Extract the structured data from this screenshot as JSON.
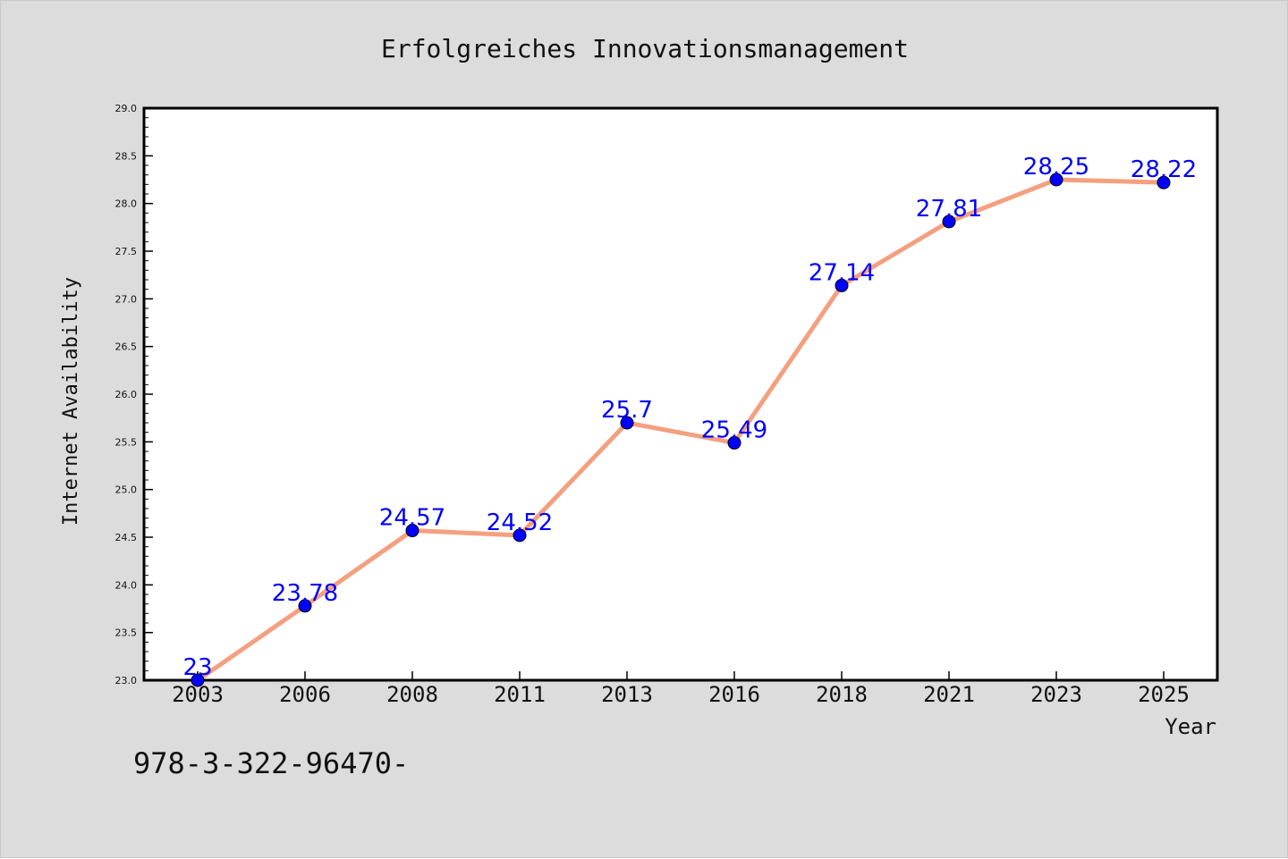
{
  "title": "Erfolgreiches Innovationsmanagement",
  "footer_text": "978-3-322-96470-",
  "colors": {
    "background": "#dcdcdc",
    "plot_background": "#ffffff",
    "line": "#f4a07f",
    "marker": "#0000ff",
    "label": "#0000ff",
    "axis": "#000000"
  },
  "chart_data": {
    "type": "line",
    "title": "Erfolgreiches Innovationsmanagement",
    "xlabel": "Year",
    "ylabel": "Internet Availability",
    "categories": [
      "2003",
      "2006",
      "2008",
      "2011",
      "2013",
      "2016",
      "2018",
      "2021",
      "2023",
      "2025"
    ],
    "series": [
      {
        "values": [
          23,
          23.78,
          24.57,
          24.52,
          25.7,
          25.49,
          27.14,
          27.81,
          28.25,
          28.22
        ],
        "data_labels": [
          "23",
          "23.78",
          "24.57",
          "24.52",
          "25.7",
          "25.49",
          "27.14",
          "27.81",
          "28.25",
          "28.22"
        ]
      }
    ],
    "ylim": [
      23.0,
      29.0
    ],
    "yticks": [
      "23.0",
      "23.5",
      "24.0",
      "24.5",
      "25.0",
      "25.5",
      "26.0",
      "26.5",
      "27.0",
      "27.5",
      "28.0",
      "28.5",
      "29.0"
    ],
    "grid": false,
    "legend": "none"
  }
}
